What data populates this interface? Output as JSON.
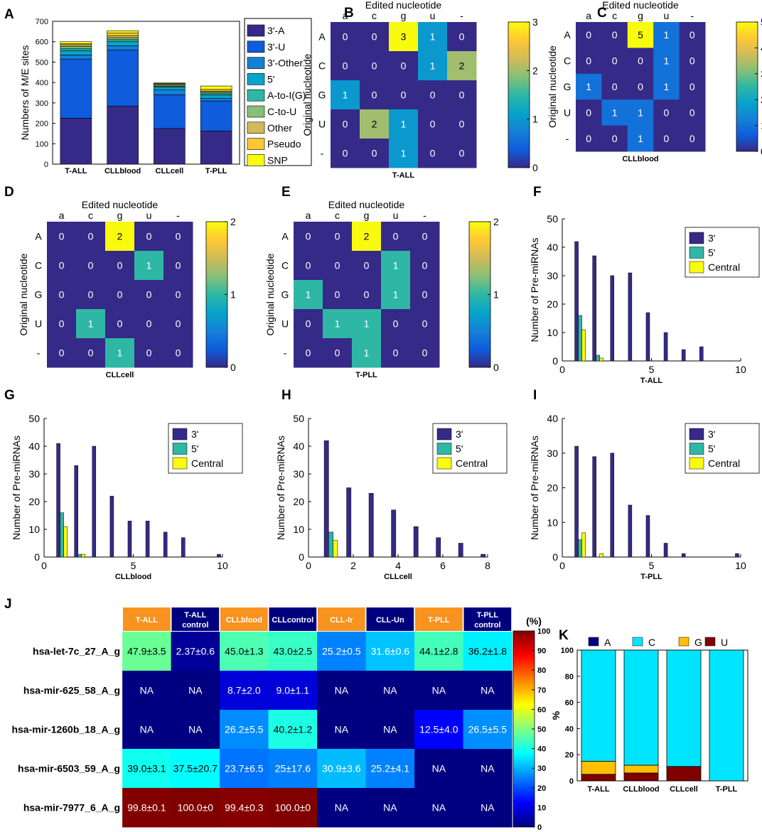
{
  "palette": {
    "parula": [
      "#352a87",
      "#0f5cdd",
      "#1481d6",
      "#06a4ca",
      "#2eb7a4",
      "#87bf77",
      "#d1bb59",
      "#fec832",
      "#f9fb0e"
    ],
    "jet": [
      "#000080",
      "#0000ff",
      "#0080ff",
      "#00ffff",
      "#80ff80",
      "#ffff00",
      "#ff8000",
      "#ff0000",
      "#800000"
    ],
    "sample_orange": "#f7931e",
    "sample_navy": "#00007f"
  },
  "chart_data": [
    {
      "id": "A",
      "panel_letter": "A",
      "type": "bar",
      "stacked": true,
      "ylabel": "Numbers of M/E sites",
      "ylim": [
        0,
        700
      ],
      "yticks": [
        0,
        100,
        200,
        300,
        400,
        500,
        600,
        700
      ],
      "categories": [
        "T-ALL",
        "CLLblood",
        "CLLcell",
        "T-PLL"
      ],
      "series": [
        {
          "name": "3'-A",
          "color": "#352a87",
          "values": [
            225,
            285,
            175,
            162
          ]
        },
        {
          "name": "3'-U",
          "color": "#0f5cdd",
          "values": [
            290,
            275,
            165,
            148
          ]
        },
        {
          "name": "3'-Other",
          "color": "#1481d6",
          "values": [
            20,
            20,
            25,
            12
          ]
        },
        {
          "name": "5'",
          "color": "#06a4ca",
          "values": [
            22,
            20,
            12,
            18
          ]
        },
        {
          "name": "A-to-I(G)",
          "color": "#2eb7a4",
          "values": [
            10,
            10,
            5,
            8
          ]
        },
        {
          "name": "C-to-U",
          "color": "#87bf77",
          "values": [
            10,
            10,
            5,
            5
          ]
        },
        {
          "name": "Other",
          "color": "#d1bb59",
          "values": [
            8,
            10,
            5,
            5
          ]
        },
        {
          "name": "Pseudo",
          "color": "#fec832",
          "values": [
            5,
            12,
            3,
            8
          ]
        },
        {
          "name": "SNP",
          "color": "#f9fb0e",
          "values": [
            10,
            12,
            3,
            17
          ]
        }
      ]
    },
    {
      "id": "B",
      "panel_letter": "B",
      "type": "heatmap",
      "xlabel": "T-ALL",
      "title": "Edited nucleotide",
      "ylabel": "Original nucleotide",
      "cols": [
        "a",
        "c",
        "g",
        "u",
        "-"
      ],
      "rows": [
        "A",
        "C",
        "G",
        "U",
        "-"
      ],
      "values": [
        [
          0,
          0,
          3,
          1,
          0
        ],
        [
          0,
          0,
          0,
          1,
          2
        ],
        [
          1,
          0,
          0,
          0,
          0
        ],
        [
          0,
          2,
          1,
          0,
          0
        ],
        [
          0,
          0,
          1,
          0,
          0
        ]
      ],
      "clim": [
        0,
        3
      ],
      "cticks": [
        0,
        1,
        2,
        3
      ]
    },
    {
      "id": "C",
      "panel_letter": "C",
      "type": "heatmap",
      "xlabel": "CLLblood",
      "title": "Edited nucleotide",
      "ylabel": "Original nucleotide",
      "cols": [
        "a",
        "c",
        "g",
        "u",
        "-"
      ],
      "rows": [
        "A",
        "C",
        "G",
        "U",
        "-"
      ],
      "values": [
        [
          0,
          0,
          5,
          1,
          0
        ],
        [
          0,
          0,
          0,
          1,
          0
        ],
        [
          1,
          0,
          0,
          1,
          0
        ],
        [
          0,
          1,
          1,
          0,
          0
        ],
        [
          0,
          0,
          1,
          0,
          0
        ]
      ],
      "clim": [
        0,
        5
      ],
      "cticks": [
        0,
        1,
        2,
        3,
        4,
        5
      ]
    },
    {
      "id": "D",
      "panel_letter": "D",
      "type": "heatmap",
      "xlabel": "CLLcell",
      "title": "Edited nucleotide",
      "ylabel": "Original nucleotide",
      "cols": [
        "a",
        "c",
        "g",
        "u",
        "-"
      ],
      "rows": [
        "A",
        "C",
        "G",
        "U",
        "-"
      ],
      "values": [
        [
          0,
          0,
          2,
          0,
          0
        ],
        [
          0,
          0,
          0,
          1,
          0
        ],
        [
          0,
          0,
          0,
          0,
          0
        ],
        [
          0,
          1,
          0,
          0,
          0
        ],
        [
          0,
          0,
          1,
          0,
          0
        ]
      ],
      "clim": [
        0,
        2
      ],
      "cticks": [
        0,
        1,
        2
      ]
    },
    {
      "id": "E",
      "panel_letter": "E",
      "type": "heatmap",
      "xlabel": "T-PLL",
      "title": "Edited nucleotide",
      "ylabel": "Original nucleotide",
      "cols": [
        "a",
        "c",
        "g",
        "u",
        "-"
      ],
      "rows": [
        "A",
        "C",
        "G",
        "U",
        "-"
      ],
      "values": [
        [
          0,
          0,
          2,
          0,
          0
        ],
        [
          0,
          0,
          0,
          1,
          0
        ],
        [
          1,
          0,
          0,
          1,
          0
        ],
        [
          0,
          1,
          1,
          0,
          0
        ],
        [
          0,
          0,
          1,
          0,
          0
        ]
      ],
      "clim": [
        0,
        2
      ],
      "cticks": [
        0,
        1,
        2
      ]
    },
    {
      "id": "F",
      "panel_letter": "F",
      "type": "bar",
      "xlabel": "T-ALL",
      "ylabel": "Number of Pre-miRNAs",
      "xlim": [
        0,
        10
      ],
      "ylim": [
        0,
        50
      ],
      "xticks": [
        0,
        5,
        10
      ],
      "yticks": [
        0,
        10,
        20,
        30,
        40,
        50
      ],
      "x": [
        1,
        2,
        3,
        4,
        5,
        6,
        7,
        8,
        9,
        10
      ],
      "series": [
        {
          "name": "3'",
          "color": "#352a87",
          "values": [
            42,
            37,
            30,
            31,
            17,
            10,
            4,
            5,
            0,
            0
          ]
        },
        {
          "name": "5'",
          "color": "#2eb7a4",
          "values": [
            16,
            2,
            0,
            0,
            0,
            0,
            0,
            0,
            0,
            0
          ]
        },
        {
          "name": "Central",
          "color": "#f9fb0e",
          "values": [
            11,
            1,
            0,
            0,
            0,
            0,
            0,
            0,
            0,
            0
          ]
        }
      ]
    },
    {
      "id": "G",
      "panel_letter": "G",
      "type": "bar",
      "xlabel": "CLLblood",
      "ylabel": "Number of Pre-miRNAs",
      "xlim": [
        0,
        10
      ],
      "ylim": [
        0,
        50
      ],
      "xticks": [
        0,
        5,
        10
      ],
      "yticks": [
        0,
        10,
        20,
        30,
        40,
        50
      ],
      "x": [
        1,
        2,
        3,
        4,
        5,
        6,
        7,
        8,
        9,
        10
      ],
      "series": [
        {
          "name": "3'",
          "color": "#352a87",
          "values": [
            41,
            33,
            40,
            22,
            13,
            13,
            9,
            7,
            0,
            1
          ]
        },
        {
          "name": "5'",
          "color": "#2eb7a4",
          "values": [
            16,
            1,
            0,
            0,
            0,
            0,
            0,
            0,
            0,
            0
          ]
        },
        {
          "name": "Central",
          "color": "#f9fb0e",
          "values": [
            11,
            1,
            0,
            0,
            0,
            0,
            0,
            0,
            0,
            0
          ]
        }
      ]
    },
    {
      "id": "H",
      "panel_letter": "H",
      "type": "bar",
      "xlabel": "CLLcell",
      "ylabel": "Number of Pre-miRNAs",
      "xlim": [
        0,
        8
      ],
      "ylim": [
        0,
        50
      ],
      "xticks": [
        0,
        2,
        4,
        6,
        8
      ],
      "yticks": [
        0,
        10,
        20,
        30,
        40,
        50
      ],
      "x": [
        1,
        2,
        3,
        4,
        5,
        6,
        7,
        8
      ],
      "series": [
        {
          "name": "3'",
          "color": "#352a87",
          "values": [
            42,
            25,
            23,
            17,
            11,
            7,
            5,
            1
          ]
        },
        {
          "name": "5'",
          "color": "#2eb7a4",
          "values": [
            9,
            0,
            0,
            0,
            0,
            0,
            0,
            0
          ]
        },
        {
          "name": "Central",
          "color": "#f9fb0e",
          "values": [
            6,
            0,
            0,
            0,
            0,
            0,
            0,
            0
          ]
        }
      ]
    },
    {
      "id": "I",
      "panel_letter": "I",
      "type": "bar",
      "xlabel": "T-PLL",
      "ylabel": "Number of Pre-miRNAs",
      "xlim": [
        0,
        10
      ],
      "ylim": [
        0,
        40
      ],
      "xticks": [
        0,
        5,
        10
      ],
      "yticks": [
        0,
        10,
        20,
        30,
        40
      ],
      "x": [
        1,
        2,
        3,
        4,
        5,
        6,
        7,
        8,
        9,
        10
      ],
      "series": [
        {
          "name": "3'",
          "color": "#352a87",
          "values": [
            32,
            29,
            30,
            15,
            12,
            4,
            1,
            0,
            0,
            1
          ]
        },
        {
          "name": "5'",
          "color": "#2eb7a4",
          "values": [
            5,
            0,
            0,
            0,
            0,
            0,
            0,
            0,
            0,
            0
          ]
        },
        {
          "name": "Central",
          "color": "#f9fb0e",
          "values": [
            7,
            1,
            0,
            0,
            0,
            0,
            0,
            0,
            0,
            0
          ]
        }
      ]
    },
    {
      "id": "J",
      "panel_letter": "J",
      "type": "table",
      "unit": "(%)",
      "clim": [
        0,
        100
      ],
      "cticks": [
        0,
        10,
        20,
        30,
        40,
        50,
        60,
        70,
        80,
        90,
        100
      ],
      "columns": [
        "T-ALL",
        "T-ALL control",
        "CLLblood",
        "CLLcontrol",
        "CLL-Ir",
        "CLL-Un",
        "T-PLL",
        "T-PLL control"
      ],
      "column_colors": [
        "#f7931e",
        "#00007f",
        "#f7931e",
        "#00007f",
        "#f7931e",
        "#00007f",
        "#f7931e",
        "#00007f"
      ],
      "rows": [
        "hsa-let-7c_27_A_g",
        "hsa-mir-625_58_A_g",
        "hsa-mir-1260b_18_A_g",
        "hsa-mir-6503_59_A_g",
        "hsa-mir-7977_6_A_g"
      ],
      "labels": [
        [
          "47.9±3.5",
          "2.37±0.6",
          "45.0±1.3",
          "43.0±2.5",
          "25.2±0.5",
          "31.6±0.6",
          "44.1±2.8",
          "36.2±1.8"
        ],
        [
          "NA",
          "NA",
          "8.7±2.0",
          "9.0±1.1",
          "NA",
          "NA",
          "NA",
          "NA"
        ],
        [
          "NA",
          "NA",
          "26.2±5.5",
          "40.2±1.2",
          "NA",
          "NA",
          "12.5±4.0",
          "26.5±5.5"
        ],
        [
          "39.0±3.1",
          "37.5±20.7",
          "23.7±6.5",
          "25±17.6",
          "30.9±3.6",
          "25.2±4.1",
          "NA",
          "NA"
        ],
        [
          "99.8±0.1",
          "100.0±0",
          "99.4±0.3",
          "100.0±0",
          "NA",
          "NA",
          "NA",
          "NA"
        ]
      ],
      "values": [
        [
          47.9,
          2.37,
          45.0,
          43.0,
          25.2,
          31.6,
          44.1,
          36.2
        ],
        [
          0,
          0,
          8.7,
          9.0,
          0,
          0,
          0,
          0
        ],
        [
          0,
          0,
          26.2,
          40.2,
          0,
          0,
          12.5,
          26.5
        ],
        [
          39.0,
          37.5,
          23.7,
          25,
          30.9,
          25.2,
          0,
          0
        ],
        [
          99.8,
          100.0,
          99.4,
          100.0,
          0,
          0,
          0,
          0
        ]
      ]
    },
    {
      "id": "K",
      "panel_letter": "K",
      "type": "bar",
      "stacked": true,
      "ylabel": "%",
      "ylim": [
        0,
        100
      ],
      "yticks": [
        0,
        20,
        40,
        60,
        80,
        100
      ],
      "categories": [
        "T-ALL",
        "CLLblood",
        "CLLcell",
        "T-PLL"
      ],
      "series": [
        {
          "name": "U",
          "color": "#800000",
          "values": [
            5,
            6,
            11,
            0
          ]
        },
        {
          "name": "G",
          "color": "#ffc000",
          "values": [
            10,
            6,
            0,
            0
          ]
        },
        {
          "name": "C",
          "color": "#00e5ff",
          "values": [
            85,
            88,
            89,
            100
          ]
        },
        {
          "name": "A",
          "color": "#00007f",
          "values": [
            0,
            0,
            0,
            0
          ]
        }
      ],
      "legend_order": [
        "A",
        "C",
        "G",
        "U"
      ]
    }
  ]
}
